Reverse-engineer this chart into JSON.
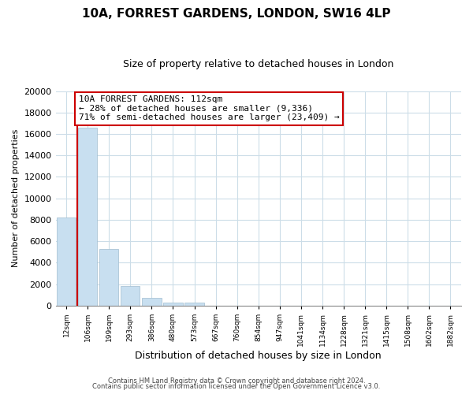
{
  "title": "10A, FORREST GARDENS, LONDON, SW16 4LP",
  "subtitle": "Size of property relative to detached houses in London",
  "xlabel": "Distribution of detached houses by size in London",
  "ylabel": "Number of detached properties",
  "bar_values": [
    8200,
    16600,
    5300,
    1800,
    750,
    280,
    280,
    0,
    0,
    0,
    0,
    0,
    0,
    0,
    0,
    0,
    0,
    0,
    0
  ],
  "bar_color": "#c8dff0",
  "bar_edge_color": "#c8dff0",
  "tick_labels": [
    "12sqm",
    "106sqm",
    "199sqm",
    "293sqm",
    "386sqm",
    "480sqm",
    "573sqm",
    "667sqm",
    "760sqm",
    "854sqm",
    "947sqm",
    "1041sqm",
    "1134sqm",
    "1228sqm",
    "1321sqm",
    "1415sqm",
    "1508sqm",
    "1602sqm",
    "1882sqm"
  ],
  "ylim": [
    0,
    20000
  ],
  "yticks": [
    0,
    2000,
    4000,
    6000,
    8000,
    10000,
    12000,
    14000,
    16000,
    18000,
    20000
  ],
  "property_line_x": 0.5,
  "property_line_color": "#cc0000",
  "annotation_title": "10A FORREST GARDENS: 112sqm",
  "annotation_line1": "← 28% of detached houses are smaller (9,336)",
  "annotation_line2": "71% of semi-detached houses are larger (23,409) →",
  "annotation_box_color": "#ffffff",
  "annotation_box_edge": "#cc0000",
  "grid_color": "#ccdde8",
  "footer1": "Contains HM Land Registry data © Crown copyright and database right 2024.",
  "footer2": "Contains public sector information licensed under the Open Government Licence v3.0."
}
